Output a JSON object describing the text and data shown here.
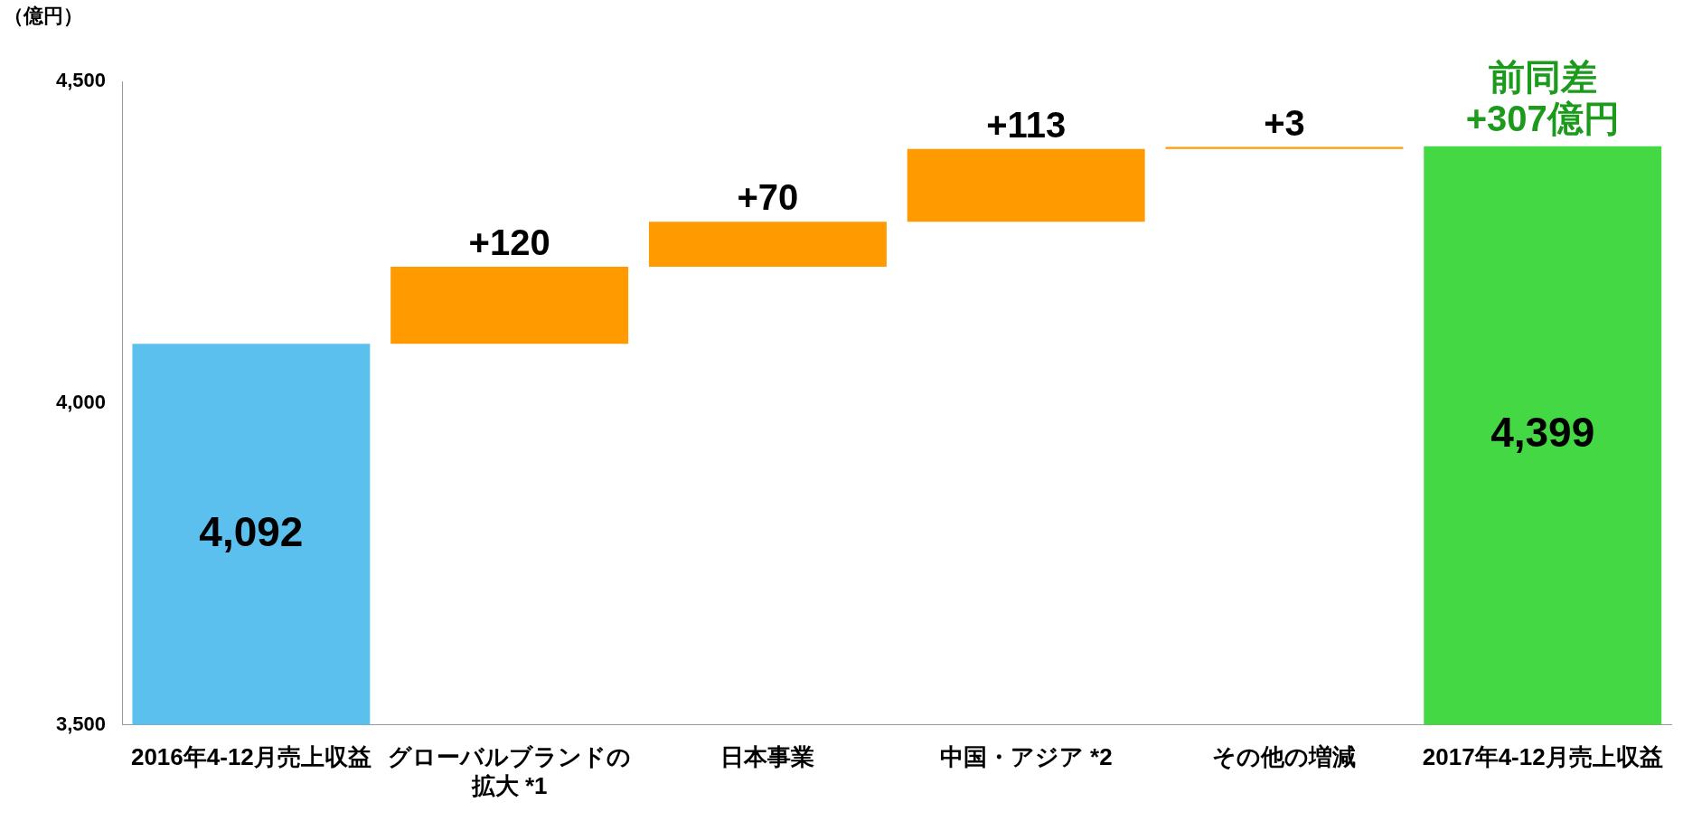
{
  "chart_data": {
    "type": "bar",
    "ylabel": "（億円）",
    "categories": [
      "2016年4-12月売上収益",
      "グローバルブランドの拡大 *1",
      "日本事業",
      "中国・アジア *2",
      "その他の増減",
      "2017年4-12月売上収益"
    ],
    "values": [
      4092,
      120,
      70,
      113,
      3,
      4399
    ],
    "base": [
      null,
      4092,
      4212,
      4282,
      4395,
      null
    ],
    "colors": [
      "#5cc0ee",
      "#ff9a00",
      "#ff9a00",
      "#ff9a00",
      "#ff9a00",
      "#44d844"
    ],
    "value_labels": [
      "4,092",
      "+120",
      "+70",
      "+113",
      "+3",
      "4,399"
    ],
    "ylim": [
      3500,
      4500
    ],
    "yticks": [
      {
        "value": 3500,
        "label": "3,500"
      },
      {
        "value": 4000,
        "label": "4,000"
      },
      {
        "value": 4500,
        "label": "4,500"
      }
    ],
    "annotations": [
      "前同差\n+307億円"
    ],
    "grid": false,
    "legend": false
  }
}
